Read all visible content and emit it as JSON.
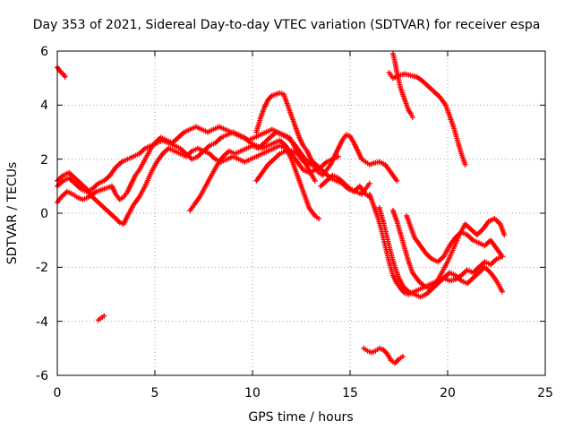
{
  "chart_data": {
    "type": "scatter",
    "title": "Day 353 of 2021, Sidereal Day-to-day VTEC variation (SDTVAR) for receiver espa",
    "xlabel": "GPS time / hours",
    "ylabel": "SDTVAR / TECUs",
    "xlim": [
      0,
      25
    ],
    "ylim": [
      -6,
      6
    ],
    "x_ticks": [
      "0",
      "5",
      "10",
      "15",
      "20",
      "25"
    ],
    "y_ticks": [
      "-6",
      "-4",
      "-2",
      "0",
      "2",
      "4",
      "6"
    ],
    "grid": true,
    "marker": "plus",
    "color": "#ff0000",
    "series": [
      {
        "x": [
          0.0,
          0.1,
          0.2,
          0.3,
          0.4
        ],
        "y": [
          5.4,
          5.3,
          5.2,
          5.15,
          5.05
        ]
      },
      {
        "x": [
          0.0,
          0.2,
          0.5,
          0.8,
          1.0,
          1.3,
          1.6,
          2.0,
          2.4,
          2.8,
          3.0,
          3.2,
          3.4,
          3.6,
          3.8,
          4.0,
          4.2,
          4.5,
          4.8,
          5.0,
          5.3,
          5.6,
          5.9,
          6.2,
          6.5,
          6.8,
          7.1,
          7.4,
          7.7,
          8.0,
          8.3,
          8.6,
          8.9,
          9.2,
          9.5,
          9.8,
          10.1,
          10.4,
          10.7,
          11.0,
          11.3,
          11.6,
          11.9,
          12.2,
          12.5,
          12.8,
          13.1,
          13.4,
          13.7,
          14.0,
          14.3,
          14.6,
          14.9,
          15.2,
          15.5,
          15.8,
          16.0
        ],
        "y": [
          0.4,
          0.6,
          0.8,
          0.7,
          0.6,
          0.5,
          0.6,
          0.8,
          0.9,
          1.0,
          0.7,
          0.5,
          0.6,
          0.8,
          1.1,
          1.4,
          1.6,
          2.0,
          2.4,
          2.6,
          2.8,
          2.7,
          2.6,
          2.8,
          3.0,
          3.1,
          3.2,
          3.1,
          3.0,
          3.1,
          3.2,
          3.1,
          3.0,
          2.9,
          2.8,
          2.7,
          2.8,
          2.9,
          3.0,
          3.1,
          3.0,
          2.9,
          2.8,
          2.4,
          2.0,
          1.8,
          1.9,
          1.7,
          1.5,
          1.3,
          1.2,
          1.1,
          0.9,
          0.8,
          1.0,
          0.7,
          0.6
        ]
      },
      {
        "x": [
          0.0,
          0.3,
          0.6,
          0.9,
          1.2,
          1.5,
          1.8,
          2.1,
          2.4,
          2.7,
          3.0,
          3.2,
          3.4,
          3.6,
          3.9,
          4.2,
          4.5,
          4.8,
          5.1,
          5.4,
          5.7,
          6.0,
          6.3,
          6.6,
          6.9,
          7.2,
          7.5,
          7.8,
          8.1,
          8.4,
          8.7,
          9.0,
          9.3,
          9.6,
          9.9,
          10.2,
          10.5,
          10.8,
          11.1,
          11.4,
          11.7,
          12.0,
          12.3,
          12.6,
          12.9,
          13.2,
          13.4
        ],
        "y": [
          1.2,
          1.4,
          1.5,
          1.3,
          1.1,
          0.9,
          0.6,
          0.4,
          0.2,
          0.0,
          -0.2,
          -0.35,
          -0.4,
          -0.1,
          0.3,
          0.6,
          1.0,
          1.5,
          1.9,
          2.2,
          2.4,
          2.3,
          2.2,
          2.1,
          2.3,
          2.4,
          2.3,
          2.2,
          2.0,
          1.9,
          2.0,
          2.1,
          2.0,
          1.9,
          2.0,
          2.1,
          2.2,
          2.3,
          2.4,
          2.5,
          2.4,
          2.0,
          1.4,
          0.8,
          0.2,
          -0.1,
          -0.2
        ]
      },
      {
        "x": [
          0.0,
          0.3,
          0.6,
          0.9,
          1.2,
          1.5,
          1.8,
          2.1,
          2.4,
          2.7,
          3.0,
          3.3,
          3.6,
          3.9,
          4.2,
          4.5,
          4.8,
          5.1,
          5.4,
          5.7,
          6.0,
          6.3,
          6.6,
          6.9,
          7.2,
          7.5,
          7.8,
          8.1,
          8.4,
          8.7,
          9.0,
          9.3,
          9.6,
          9.9,
          10.2,
          10.5,
          10.8,
          11.1,
          11.4,
          11.7,
          12.0,
          12.3,
          12.6,
          12.9,
          13.2,
          13.5,
          13.8,
          14.1,
          14.4
        ],
        "y": [
          1.0,
          1.2,
          1.3,
          1.1,
          0.9,
          0.8,
          0.9,
          1.1,
          1.2,
          1.4,
          1.7,
          1.9,
          2.0,
          2.1,
          2.2,
          2.4,
          2.5,
          2.6,
          2.7,
          2.6,
          2.5,
          2.4,
          2.2,
          2.0,
          2.1,
          2.3,
          2.5,
          2.6,
          2.8,
          2.9,
          3.0,
          2.9,
          2.8,
          2.6,
          2.5,
          2.4,
          2.5,
          2.6,
          2.7,
          2.5,
          2.2,
          1.9,
          1.6,
          1.5,
          1.6,
          1.7,
          1.9,
          2.0,
          2.1
        ]
      },
      {
        "x": [
          6.8,
          7.0,
          7.3,
          7.6,
          7.9,
          8.2,
          8.5,
          8.8,
          9.1,
          9.4,
          9.7,
          10.0,
          10.3,
          10.6,
          10.9,
          11.2,
          11.5,
          11.8,
          12.1,
          12.4,
          12.7,
          13.0,
          13.3
        ],
        "y": [
          0.1,
          0.3,
          0.6,
          1.0,
          1.4,
          1.8,
          2.1,
          2.3,
          2.2,
          2.3,
          2.4,
          2.5,
          2.4,
          2.6,
          2.8,
          3.0,
          2.9,
          2.8,
          2.6,
          2.3,
          2.0,
          1.8,
          1.7
        ]
      },
      {
        "x": [
          10.2,
          10.4,
          10.6,
          10.8,
          11.0,
          11.2,
          11.4,
          11.6,
          11.8,
          12.0,
          12.2,
          12.4,
          12.6,
          12.8,
          13.0,
          13.2,
          13.4,
          13.6,
          13.8,
          14.0,
          14.2,
          14.4,
          14.6,
          14.8,
          15.0,
          15.2,
          15.4,
          15.6,
          15.8,
          16.0,
          16.2,
          16.5,
          16.8,
          17.1,
          17.4
        ],
        "y": [
          3.0,
          3.5,
          3.9,
          4.2,
          4.35,
          4.4,
          4.45,
          4.4,
          4.0,
          3.6,
          3.2,
          2.8,
          2.5,
          2.3,
          2.0,
          1.7,
          1.5,
          1.4,
          1.6,
          1.8,
          2.1,
          2.4,
          2.7,
          2.9,
          2.85,
          2.6,
          2.3,
          2.0,
          1.9,
          1.8,
          1.85,
          1.9,
          1.8,
          1.5,
          1.2
        ]
      },
      {
        "x": [
          10.2,
          10.5,
          10.8,
          11.1,
          11.4,
          11.7,
          12.0,
          12.3,
          12.6,
          12.9,
          13.2
        ],
        "y": [
          1.2,
          1.5,
          1.8,
          2.0,
          2.2,
          2.3,
          2.3,
          2.2,
          2.0,
          1.6,
          1.2
        ]
      },
      {
        "x": [
          13.5,
          13.8,
          14.1,
          14.4,
          14.7,
          15.0,
          15.3,
          15.6,
          15.8,
          16.0
        ],
        "y": [
          1.0,
          1.2,
          1.4,
          1.3,
          1.1,
          0.9,
          0.8,
          0.7,
          0.9,
          1.1
        ]
      },
      {
        "x": [
          2.1,
          2.2,
          2.3,
          2.4
        ],
        "y": [
          -3.95,
          -3.9,
          -3.85,
          -3.8
        ]
      },
      {
        "x": [
          15.7,
          15.9,
          16.1,
          16.3,
          16.5,
          16.7,
          16.9,
          17.1,
          17.3,
          17.5,
          17.7
        ],
        "y": [
          -5.0,
          -5.1,
          -5.15,
          -5.1,
          -5.0,
          -5.05,
          -5.2,
          -5.45,
          -5.55,
          -5.4,
          -5.3
        ]
      },
      {
        "x": [
          17.2,
          17.3,
          17.4,
          17.5,
          17.6,
          17.7,
          17.8,
          17.9,
          18.0,
          18.1,
          18.2
        ],
        "y": [
          5.9,
          5.6,
          5.2,
          4.9,
          4.6,
          4.4,
          4.2,
          4.0,
          3.8,
          3.7,
          3.55
        ]
      },
      {
        "x": [
          17.0,
          17.2,
          17.5,
          17.8,
          18.1,
          18.4,
          18.7,
          19.0,
          19.3,
          19.6,
          19.9,
          20.1,
          20.3,
          20.5,
          20.7,
          20.9
        ],
        "y": [
          5.2,
          5.0,
          5.1,
          5.15,
          5.1,
          5.05,
          4.9,
          4.7,
          4.5,
          4.3,
          4.0,
          3.6,
          3.2,
          2.7,
          2.2,
          1.8
        ]
      },
      {
        "x": [
          16.0,
          16.2,
          16.4,
          16.6,
          16.8,
          17.0,
          17.2,
          17.4,
          17.6,
          17.8,
          18.0,
          18.3,
          18.6,
          18.9,
          19.2,
          19.5,
          19.8,
          20.1,
          20.4,
          20.7,
          21.0,
          21.3,
          21.6,
          21.9,
          22.2,
          22.5,
          22.8
        ],
        "y": [
          0.7,
          0.3,
          -0.1,
          -0.6,
          -1.2,
          -1.8,
          -2.3,
          -2.6,
          -2.8,
          -2.95,
          -3.0,
          -2.9,
          -2.8,
          -2.7,
          -2.6,
          -2.5,
          -2.4,
          -2.5,
          -2.45,
          -2.3,
          -2.1,
          -2.2,
          -2.0,
          -1.8,
          -1.9,
          -1.7,
          -1.6
        ]
      },
      {
        "x": [
          16.5,
          16.7,
          16.9,
          17.1,
          17.3,
          17.5,
          17.7,
          18.0,
          18.3,
          18.6,
          18.9,
          19.2,
          19.5,
          19.8,
          20.1,
          20.4,
          20.7,
          21.0,
          21.3,
          21.6,
          21.9,
          22.2,
          22.5,
          22.8
        ],
        "y": [
          0.2,
          -0.3,
          -0.9,
          -1.5,
          -2.0,
          -2.4,
          -2.7,
          -2.9,
          -3.0,
          -3.1,
          -3.0,
          -2.8,
          -2.6,
          -2.4,
          -2.2,
          -2.3,
          -2.5,
          -2.6,
          -2.4,
          -2.2,
          -2.0,
          -2.2,
          -2.5,
          -2.9
        ]
      },
      {
        "x": [
          17.2,
          17.4,
          17.6,
          17.8,
          18.0,
          18.2,
          18.5,
          18.8,
          19.1,
          19.4,
          19.7,
          20.0,
          20.3,
          20.6,
          20.9,
          21.2,
          21.5,
          21.8,
          22.1,
          22.4,
          22.7,
          22.9
        ],
        "y": [
          0.1,
          -0.3,
          -0.8,
          -1.3,
          -1.8,
          -2.2,
          -2.5,
          -2.7,
          -2.8,
          -2.6,
          -2.2,
          -1.8,
          -1.3,
          -0.8,
          -0.4,
          -0.6,
          -0.8,
          -0.6,
          -0.3,
          -0.2,
          -0.4,
          -0.8
        ]
      },
      {
        "x": [
          17.9,
          18.1,
          18.3,
          18.6,
          18.9,
          19.2,
          19.5,
          19.8,
          20.1,
          20.4,
          20.7,
          21.0,
          21.3,
          21.6,
          21.9,
          22.2,
          22.5,
          22.8
        ],
        "y": [
          -0.1,
          -0.5,
          -0.9,
          -1.2,
          -1.5,
          -1.7,
          -1.8,
          -1.6,
          -1.2,
          -0.9,
          -0.7,
          -0.8,
          -1.0,
          -1.1,
          -1.2,
          -1.0,
          -1.3,
          -1.6
        ]
      }
    ]
  }
}
